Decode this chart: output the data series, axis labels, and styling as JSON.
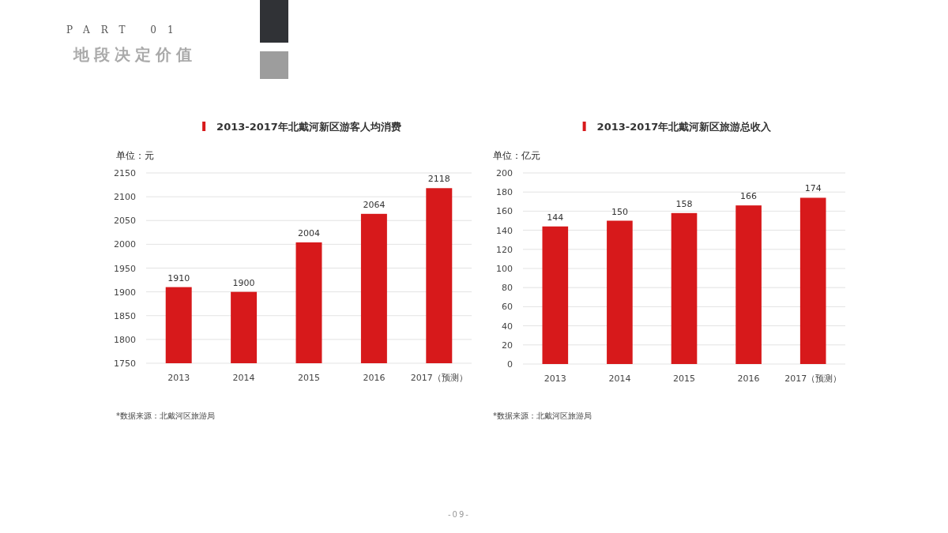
{
  "chart_data": [
    {
      "type": "other",
      "subtitle": "PART 01",
      "title": "地段决定价值",
      "annotations": [
        "-09-"
      ]
    },
    {
      "type": "bar",
      "title": "2013-2017年北戴河新区游客人均消费",
      "ylabel": "单位：元",
      "categories": [
        "2013",
        "2014",
        "2015",
        "2016",
        "2017（预测）"
      ],
      "values": [
        1910,
        1900,
        2004,
        2064,
        2118
      ],
      "color": "#d7191b",
      "ylim": [
        1750,
        2150
      ],
      "yticks": [
        1750,
        1800,
        1850,
        1900,
        1950,
        2000,
        2050,
        2100,
        2150
      ],
      "grid": "y",
      "data_labels": true,
      "annotations": [
        "*数据来源：北戴河区旅游局"
      ]
    },
    {
      "type": "bar",
      "title": "2013-2017年北戴河新区旅游总收入",
      "ylabel": "单位：亿元",
      "categories": [
        "2013",
        "2014",
        "2015",
        "2016",
        "2017（预测）"
      ],
      "values": [
        144,
        150,
        158,
        166,
        174
      ],
      "color": "#d7191b",
      "ylim": [
        0,
        200
      ],
      "yticks": [
        0,
        20,
        40,
        60,
        80,
        100,
        120,
        140,
        160,
        180,
        200
      ],
      "grid": "y",
      "data_labels": true,
      "annotations": [
        "*数据来源：北戴河区旅游局"
      ]
    }
  ]
}
